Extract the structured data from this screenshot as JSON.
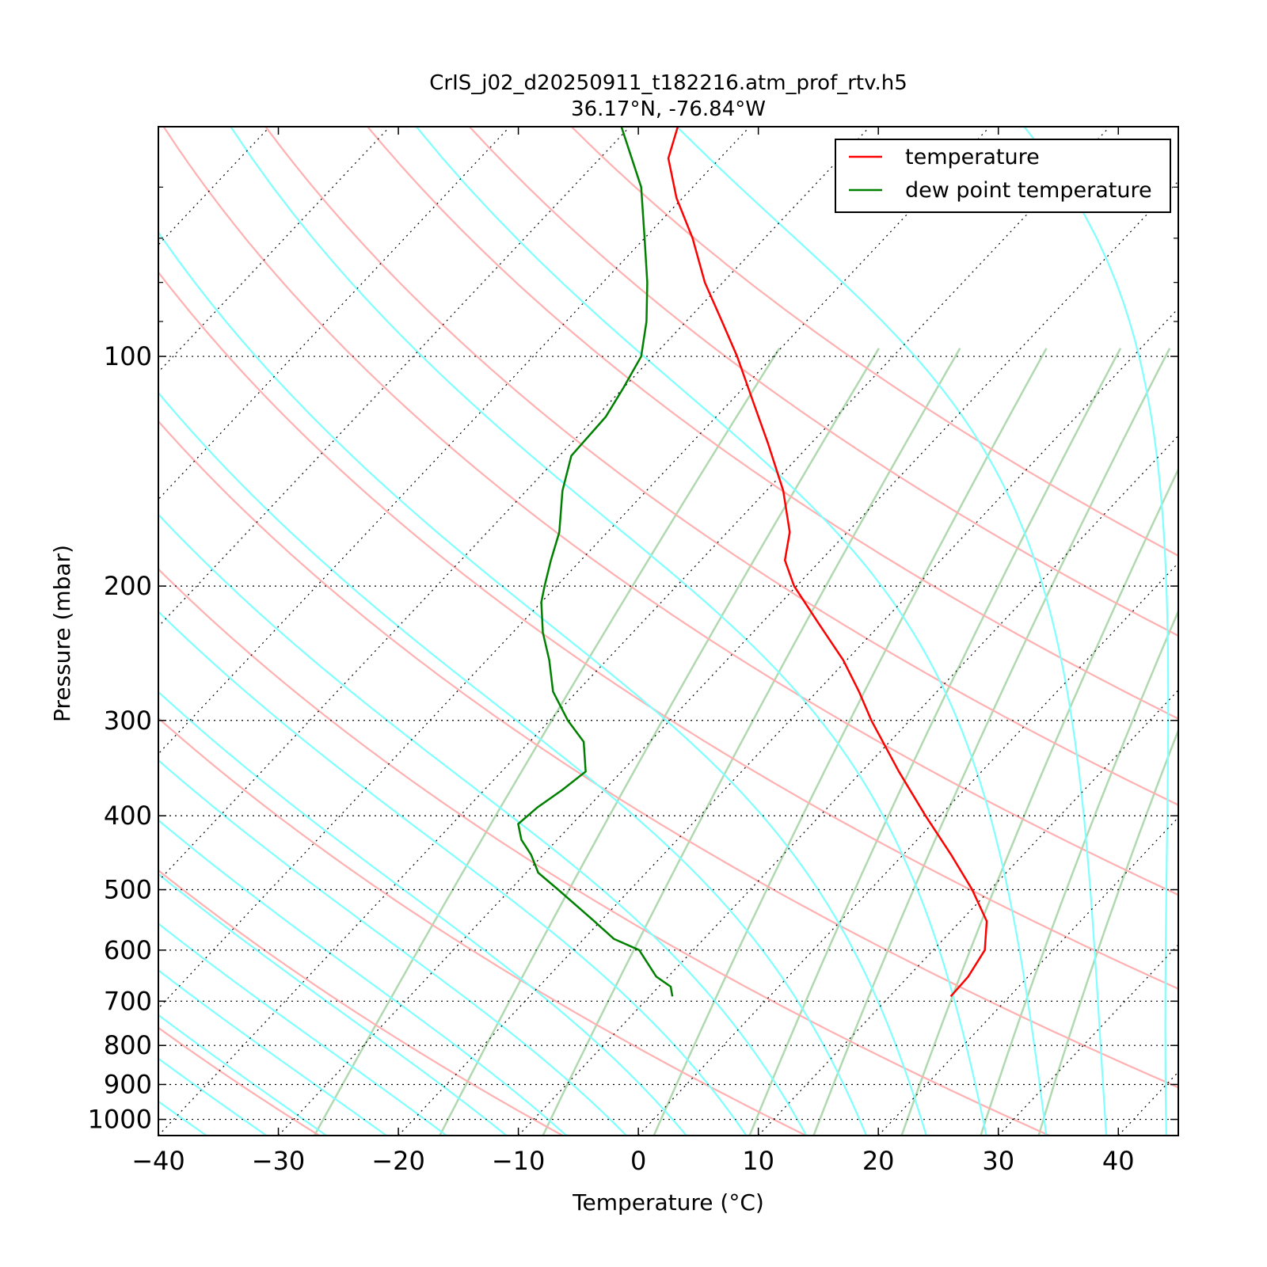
{
  "chart_data": {
    "type": "line",
    "subtype": "skew-T log-P diagram",
    "title": "CrIS_j02_d20250911_t182216.atm_prof_rtv.h5",
    "subtitle": "36.17°N, -76.84°W",
    "xlabel": "Temperature (°C)",
    "ylabel": "Pressure (mbar)",
    "xlim": [
      -40,
      45
    ],
    "ylim": [
      1050,
      50
    ],
    "y_scale": "log",
    "x_ticks": [
      -40,
      -30,
      -20,
      -10,
      0,
      10,
      20,
      30,
      40
    ],
    "x_tick_labels": [
      "−40",
      "−30",
      "−20",
      "−10",
      "0",
      "10",
      "20",
      "30",
      "40"
    ],
    "y_ticks": [
      100,
      200,
      300,
      400,
      500,
      600,
      700,
      800,
      900,
      1000
    ],
    "y_tick_labels": [
      "100",
      "200",
      "300",
      "400",
      "500",
      "600",
      "700",
      "800",
      "900",
      "1000"
    ],
    "grid": true,
    "legend_position": "top-right",
    "series": [
      {
        "name": "temperature",
        "color": "#ff0000",
        "points": [
          [
            690,
            15.1
          ],
          [
            650,
            15.0
          ],
          [
            600,
            14.3
          ],
          [
            550,
            12.2
          ],
          [
            500,
            8.5
          ],
          [
            450,
            4.0
          ],
          [
            400,
            -1.2
          ],
          [
            350,
            -6.9
          ],
          [
            300,
            -13.2
          ],
          [
            275,
            -16.5
          ],
          [
            250,
            -20.3
          ],
          [
            225,
            -25.0
          ],
          [
            200,
            -30.2
          ],
          [
            185,
            -33.0
          ],
          [
            170,
            -34.8
          ],
          [
            150,
            -38.6
          ],
          [
            130,
            -43.6
          ],
          [
            115,
            -48.0
          ],
          [
            100,
            -53.0
          ],
          [
            90,
            -57.0
          ],
          [
            80,
            -61.5
          ],
          [
            70,
            -66.0
          ],
          [
            62,
            -70.5
          ],
          [
            55,
            -74.3
          ],
          [
            50,
            -76.0
          ]
        ]
      },
      {
        "name": "dew point temperature",
        "color": "#008000",
        "points": [
          [
            690,
            -8.1
          ],
          [
            670,
            -9.0
          ],
          [
            650,
            -11.0
          ],
          [
            600,
            -14.5
          ],
          [
            580,
            -17.5
          ],
          [
            550,
            -20.5
          ],
          [
            500,
            -26.0
          ],
          [
            475,
            -29.0
          ],
          [
            450,
            -31.0
          ],
          [
            430,
            -33.0
          ],
          [
            410,
            -34.5
          ],
          [
            390,
            -34.2
          ],
          [
            370,
            -33.5
          ],
          [
            350,
            -33.0
          ],
          [
            320,
            -35.5
          ],
          [
            300,
            -38.5
          ],
          [
            275,
            -42.0
          ],
          [
            250,
            -44.8
          ],
          [
            230,
            -47.5
          ],
          [
            210,
            -50.0
          ],
          [
            200,
            -51.0
          ],
          [
            185,
            -52.5
          ],
          [
            170,
            -54.0
          ],
          [
            150,
            -57.0
          ],
          [
            135,
            -59.0
          ],
          [
            120,
            -59.2
          ],
          [
            110,
            -60.0
          ],
          [
            100,
            -61.0
          ],
          [
            90,
            -63.3
          ],
          [
            80,
            -66.3
          ],
          [
            70,
            -70.0
          ],
          [
            60,
            -74.3
          ],
          [
            50,
            -80.7
          ]
        ]
      }
    ],
    "colors": {
      "isotherms": "#000000",
      "dry_adiabats": "#ffb0b0",
      "moist_adiabats": "#80ffff",
      "mixing_ratio_lines": "#b0d9b0"
    }
  }
}
